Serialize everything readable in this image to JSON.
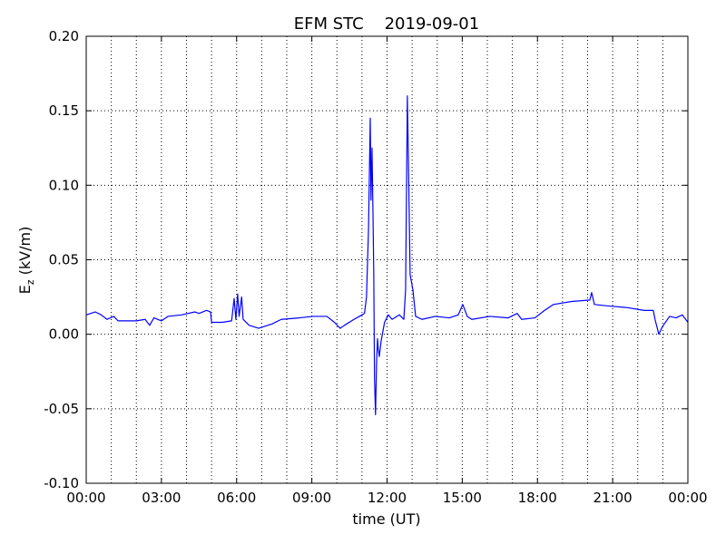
{
  "chart_data": {
    "type": "line",
    "title": "EFM STC    2019-09-01",
    "xlabel": "time (UT)",
    "ylabel": {
      "symbol": "E",
      "subscript": "z",
      "unit": " (kV/m)"
    },
    "xlim": [
      0,
      24
    ],
    "xticks": [
      {
        "value": 0,
        "label": "00:00"
      },
      {
        "value": 3,
        "label": "03:00"
      },
      {
        "value": 6,
        "label": "06:00"
      },
      {
        "value": 9,
        "label": "09:00"
      },
      {
        "value": 12,
        "label": "12:00"
      },
      {
        "value": 15,
        "label": "15:00"
      },
      {
        "value": 18,
        "label": "18:00"
      },
      {
        "value": 21,
        "label": "21:00"
      },
      {
        "value": 24,
        "label": "00:00"
      }
    ],
    "xminorticks": [
      1,
      2,
      4,
      5,
      7,
      8,
      10,
      11,
      13,
      14,
      16,
      17,
      19,
      20,
      22,
      23
    ],
    "ylim": [
      -0.1,
      0.2
    ],
    "yticks": [
      {
        "value": -0.1,
        "label": "-0.10"
      },
      -0.05,
      {
        "value": 0,
        "label": "0.00"
      },
      0.05,
      {
        "value": 0.1,
        "label": "0.10"
      },
      0.15,
      {
        "value": 0.2,
        "label": "0.20"
      }
    ],
    "grid": true,
    "x": [
      0,
      0.36,
      0.6,
      0.83,
      1.1,
      1.27,
      2.0,
      2.35,
      2.53,
      2.7,
      3.0,
      3.26,
      3.8,
      4.34,
      4.5,
      4.8,
      4.96,
      5.0,
      5.43,
      5.8,
      5.9,
      5.97,
      6.04,
      6.1,
      6.2,
      6.26,
      6.5,
      6.88,
      7.42,
      7.78,
      8.5,
      9.05,
      9.6,
      9.9,
      10.13,
      10.3,
      10.68,
      10.9,
      11.1,
      11.18,
      11.26,
      11.33,
      11.36,
      11.4,
      11.44,
      11.47,
      11.5,
      11.54,
      11.58,
      11.62,
      11.65,
      11.69,
      11.76,
      11.9,
      12.05,
      12.2,
      12.49,
      12.67,
      12.74,
      12.81,
      12.85,
      12.92,
      13.03,
      13.14,
      13.39,
      13.93,
      14.48,
      14.84,
      15.02,
      15.2,
      15.38,
      16.1,
      16.83,
      17.19,
      17.37,
      17.9,
      18.28,
      18.64,
      19.36,
      20.09,
      20.16,
      20.27,
      20.81,
      21.53,
      22.26,
      22.62,
      22.69,
      22.84,
      22.98,
      23.27,
      23.53,
      23.78,
      24
    ],
    "series": [
      {
        "color": "#0000ff",
        "values": [
          0.013,
          0.015,
          0.013,
          0.01,
          0.012,
          0.009,
          0.009,
          0.01,
          0.006,
          0.011,
          0.009,
          0.012,
          0.013,
          0.015,
          0.014,
          0.016,
          0.015,
          0.008,
          0.008,
          0.009,
          0.024,
          0.01,
          0.027,
          0.012,
          0.025,
          0.01,
          0.006,
          0.004,
          0.007,
          0.01,
          0.011,
          0.012,
          0.012,
          0.008,
          0.004,
          0.006,
          0.01,
          0.012,
          0.014,
          0.025,
          0.07,
          0.145,
          0.09,
          0.125,
          0.08,
          0.04,
          -0.03,
          -0.054,
          -0.02,
          -0.003,
          -0.01,
          -0.015,
          -0.005,
          0.008,
          0.013,
          0.01,
          0.013,
          0.01,
          0.03,
          0.16,
          0.12,
          0.04,
          0.03,
          0.012,
          0.01,
          0.012,
          0.011,
          0.013,
          0.02,
          0.012,
          0.01,
          0.012,
          0.011,
          0.014,
          0.01,
          0.011,
          0.016,
          0.02,
          0.022,
          0.023,
          0.028,
          0.02,
          0.019,
          0.018,
          0.016,
          0.016,
          0.01,
          0.0,
          0.005,
          0.012,
          0.011,
          0.013,
          0.008
        ]
      }
    ]
  }
}
